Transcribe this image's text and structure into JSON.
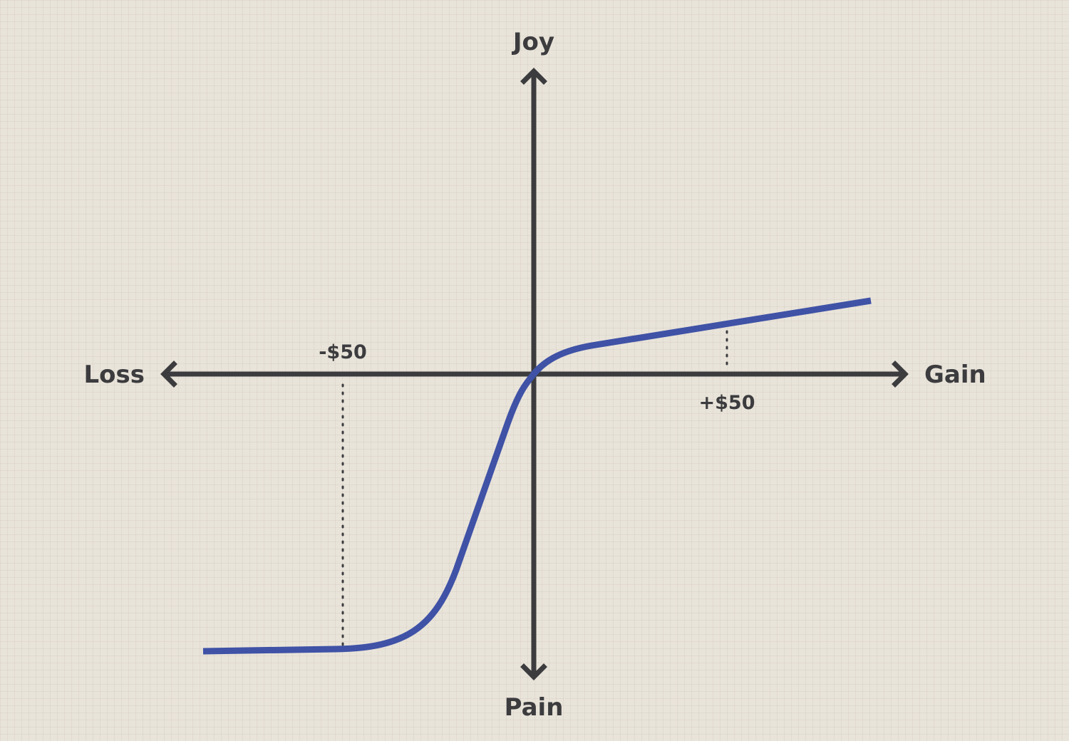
{
  "axes": {
    "x_negative_label": "Loss",
    "x_positive_label": "Gain",
    "y_positive_label": "Joy",
    "y_negative_label": "Pain"
  },
  "markers": {
    "negative_label": "-$50",
    "positive_label": "+$50"
  },
  "colors": {
    "curve": "#3f52a6",
    "axis": "#3c3c3f",
    "background": "#e9e4da"
  }
}
